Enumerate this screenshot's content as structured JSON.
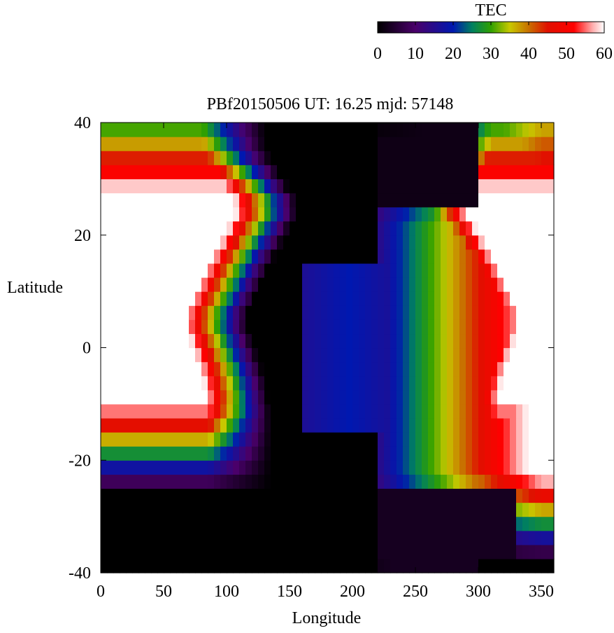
{
  "chart_data": {
    "type": "heatmap",
    "title": "PBf20150506  UT: 16.25  mjd: 57148",
    "xlabel": "Longitude",
    "ylabel": "Latitude",
    "xlim": [
      0,
      360
    ],
    "ylim": [
      -40,
      40
    ],
    "x_ticks": [
      "0",
      "50",
      "100",
      "150",
      "200",
      "250",
      "300",
      "350"
    ],
    "y_ticks": [
      "-40",
      "-20",
      "0",
      "20",
      "40"
    ],
    "colorbar": {
      "label": "TEC",
      "range": [
        0,
        60
      ],
      "ticks": [
        "0",
        "10",
        "20",
        "30",
        "40",
        "50",
        "60"
      ],
      "stops": [
        {
          "v": 0,
          "color": "#000000"
        },
        {
          "v": 10,
          "color": "#4a006a"
        },
        {
          "v": 20,
          "color": "#0018b0"
        },
        {
          "v": 25,
          "color": "#008060"
        },
        {
          "v": 30,
          "color": "#30a000"
        },
        {
          "v": 35,
          "color": "#c8c800"
        },
        {
          "v": 40,
          "color": "#c87000"
        },
        {
          "v": 45,
          "color": "#e01000"
        },
        {
          "v": 52,
          "color": "#ff0000"
        },
        {
          "v": 57,
          "color": "#ffb0b0"
        },
        {
          "v": 60,
          "color": "#ffffff"
        }
      ]
    },
    "grid": {
      "lon_step": 5,
      "lat_step": 2.5
    },
    "features": {
      "background_tec": 0,
      "west_crest": [
        {
          "lat": 35,
          "lon_half": 60
        },
        {
          "lat": 25,
          "lon_half": 85
        },
        {
          "lat": 15,
          "lon_half": 60
        },
        {
          "lat": 5,
          "lon_half": 40
        },
        {
          "lat": -5,
          "lon_half": 55
        },
        {
          "lat": -12,
          "lon_half": 60
        }
      ],
      "west_crest_center": [
        {
          "lat": 40,
          "lon": 15
        },
        {
          "lat": 20,
          "lon": 20
        },
        {
          "lat": 5,
          "lon": 20
        },
        {
          "lat": -10,
          "lon": 20
        }
      ],
      "trough_band": {
        "lon_start": 160,
        "lon_end": 235
      },
      "east_crest": {
        "lon_start": 230,
        "lon_end": 360,
        "peak_lon": 350
      },
      "north_dark": {
        "lon_start": 200,
        "lon_end": 300,
        "lat_min": 25
      },
      "south_dark": {
        "lon_start": 0,
        "lon_end": 330,
        "lat_max": -25
      }
    }
  }
}
